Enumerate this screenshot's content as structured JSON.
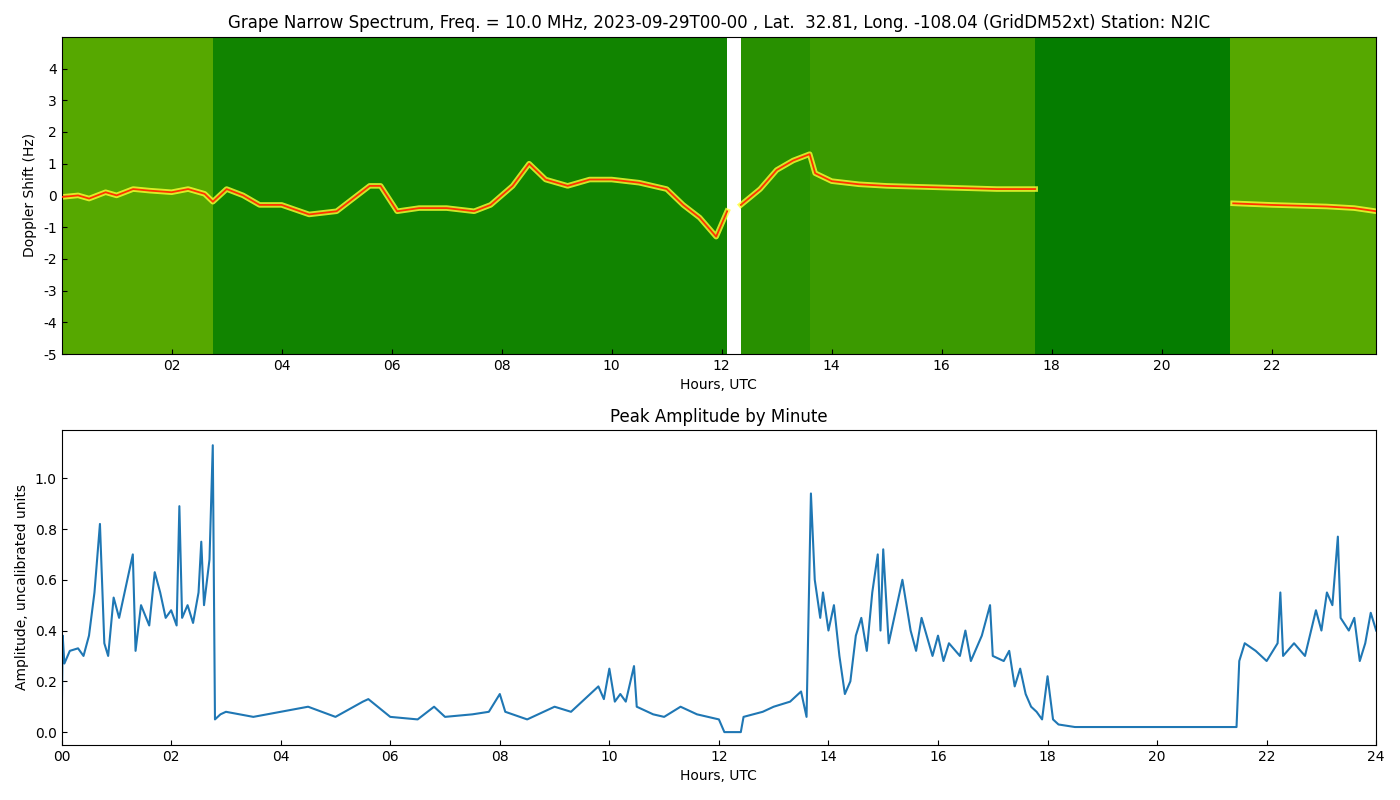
{
  "chart_data": [
    {
      "type": "spectrogram",
      "title": "Grape Narrow Spectrum, Freq. = 10.0 MHz, 2023-09-29T00-00 , Lat.  32.81, Long. -108.04 (GridDM52xt) Station: N2IC",
      "x_label": "Hours, UTC",
      "y_label": "Doppler Shift (Hz)",
      "xlim": [
        0,
        23.9
      ],
      "ylim": [
        -5,
        5
      ],
      "xticks": [
        {
          "value": 2,
          "label": "02"
        },
        {
          "value": 4,
          "label": "04"
        },
        {
          "value": 6,
          "label": "06"
        },
        {
          "value": 8,
          "label": "08"
        },
        {
          "value": 10,
          "label": "10"
        },
        {
          "value": 12,
          "label": "12"
        },
        {
          "value": 14,
          "label": "14"
        },
        {
          "value": 16,
          "label": "16"
        },
        {
          "value": 18,
          "label": "18"
        },
        {
          "value": 20,
          "label": "20"
        },
        {
          "value": 22,
          "label": "22"
        }
      ],
      "yticks": [
        -5,
        -4,
        -3,
        -2,
        -1,
        0,
        1,
        2,
        3,
        4
      ],
      "background": {
        "bins": [
          0,
          2.75,
          12.1,
          12.35,
          13.6,
          17.7,
          21.25,
          23.9
        ],
        "levels": [
          0.6,
          0.15,
          null,
          0.35,
          0.5,
          0.05,
          0.6
        ]
      },
      "x": [
        0,
        0.3,
        0.5,
        0.8,
        1.0,
        1.3,
        1.6,
        2.0,
        2.3,
        2.6,
        2.75,
        3.0,
        3.3,
        3.6,
        4.0,
        4.5,
        5.0,
        5.3,
        5.6,
        5.8,
        6.1,
        6.5,
        7.0,
        7.5,
        7.8,
        8.2,
        8.5,
        8.8,
        9.2,
        9.6,
        10.0,
        10.5,
        11.0,
        11.3,
        11.6,
        11.9,
        12.1,
        12.2,
        12.35,
        12.7,
        13.0,
        13.3,
        13.6,
        13.7,
        14.0,
        14.5,
        15.0,
        16.0,
        17.0,
        17.7,
        18.0,
        21.3,
        22.0,
        23.0,
        23.5,
        23.9
      ],
      "values": [
        -0.05,
        0.0,
        -0.1,
        0.1,
        0.0,
        0.2,
        0.15,
        0.1,
        0.2,
        0.05,
        -0.2,
        0.2,
        0.0,
        -0.3,
        -0.3,
        -0.6,
        -0.5,
        -0.1,
        0.3,
        0.3,
        -0.5,
        -0.4,
        -0.4,
        -0.5,
        -0.3,
        0.3,
        1.0,
        0.5,
        0.3,
        0.5,
        0.5,
        0.4,
        0.2,
        -0.3,
        -0.7,
        -1.3,
        -0.5,
        null,
        -0.3,
        0.2,
        0.8,
        1.1,
        1.3,
        0.7,
        0.45,
        0.35,
        0.3,
        0.25,
        0.2,
        0.2,
        null,
        -0.25,
        -0.3,
        -0.35,
        -0.4,
        -0.5
      ],
      "color": "#ff3300"
    },
    {
      "type": "line",
      "title": "Peak Amplitude by Minute",
      "x_label": "Hours, UTC",
      "y_label": "Amplitude, uncalibrated units",
      "xlim": [
        0,
        24
      ],
      "ylim": [
        -0.05,
        1.19
      ],
      "xticks": [
        {
          "value": 0,
          "label": "00"
        },
        {
          "value": 2,
          "label": "02"
        },
        {
          "value": 4,
          "label": "04"
        },
        {
          "value": 6,
          "label": "06"
        },
        {
          "value": 8,
          "label": "08"
        },
        {
          "value": 10,
          "label": "10"
        },
        {
          "value": 12,
          "label": "12"
        },
        {
          "value": 14,
          "label": "14"
        },
        {
          "value": 16,
          "label": "16"
        },
        {
          "value": 18,
          "label": "18"
        },
        {
          "value": 20,
          "label": "20"
        },
        {
          "value": 22,
          "label": "22"
        },
        {
          "value": 24,
          "label": "24"
        }
      ],
      "yticks": [
        {
          "value": 0,
          "label": "0.0"
        },
        {
          "value": 0.2,
          "label": "0.2"
        },
        {
          "value": 0.4,
          "label": "0.4"
        },
        {
          "value": 0.6,
          "label": "0.6"
        },
        {
          "value": 0.8,
          "label": "0.8"
        },
        {
          "value": 1.0,
          "label": "1.0"
        }
      ],
      "x": [
        0.0,
        0.02,
        0.05,
        0.15,
        0.3,
        0.4,
        0.5,
        0.6,
        0.7,
        0.78,
        0.85,
        0.95,
        1.05,
        1.2,
        1.3,
        1.35,
        1.45,
        1.6,
        1.7,
        1.8,
        1.9,
        2.0,
        2.1,
        2.15,
        2.2,
        2.3,
        2.4,
        2.5,
        2.55,
        2.6,
        2.7,
        2.76,
        2.8,
        2.9,
        3.0,
        3.5,
        4.0,
        4.5,
        5.0,
        5.5,
        5.6,
        6.0,
        6.5,
        6.8,
        7.0,
        7.5,
        7.8,
        8.0,
        8.1,
        8.5,
        8.8,
        9.0,
        9.3,
        9.5,
        9.8,
        9.9,
        10.0,
        10.1,
        10.2,
        10.3,
        10.45,
        10.5,
        10.8,
        11.0,
        11.3,
        11.6,
        12.0,
        12.1,
        12.4,
        12.45,
        12.8,
        13.0,
        13.3,
        13.5,
        13.6,
        13.68,
        13.75,
        13.85,
        13.9,
        14.0,
        14.1,
        14.2,
        14.3,
        14.4,
        14.5,
        14.6,
        14.7,
        14.8,
        14.9,
        14.95,
        15.0,
        15.1,
        15.2,
        15.35,
        15.5,
        15.6,
        15.7,
        15.9,
        16.0,
        16.1,
        16.2,
        16.4,
        16.5,
        16.6,
        16.8,
        16.95,
        17.0,
        17.2,
        17.3,
        17.4,
        17.5,
        17.6,
        17.7,
        17.8,
        17.9,
        18.0,
        18.1,
        18.2,
        18.5,
        19.0,
        19.5,
        20.0,
        20.5,
        21.0,
        21.45,
        21.5,
        21.6,
        21.8,
        22.0,
        22.2,
        22.25,
        22.3,
        22.5,
        22.7,
        22.9,
        23.0,
        23.1,
        23.2,
        23.3,
        23.35,
        23.5,
        23.6,
        23.7,
        23.8,
        23.9,
        24.0
      ],
      "values": [
        0.0,
        0.38,
        0.27,
        0.32,
        0.33,
        0.3,
        0.38,
        0.55,
        0.82,
        0.35,
        0.3,
        0.53,
        0.45,
        0.6,
        0.7,
        0.32,
        0.5,
        0.42,
        0.63,
        0.55,
        0.45,
        0.48,
        0.42,
        0.89,
        0.45,
        0.5,
        0.43,
        0.55,
        0.75,
        0.5,
        0.68,
        1.13,
        0.05,
        0.07,
        0.08,
        0.06,
        0.08,
        0.1,
        0.06,
        0.12,
        0.13,
        0.06,
        0.05,
        0.1,
        0.06,
        0.07,
        0.08,
        0.15,
        0.08,
        0.05,
        0.08,
        0.1,
        0.08,
        0.12,
        0.18,
        0.13,
        0.25,
        0.12,
        0.15,
        0.12,
        0.26,
        0.1,
        0.07,
        0.06,
        0.1,
        0.07,
        0.05,
        0.0,
        0.0,
        0.06,
        0.08,
        0.1,
        0.12,
        0.16,
        0.06,
        0.94,
        0.6,
        0.45,
        0.55,
        0.4,
        0.5,
        0.3,
        0.15,
        0.2,
        0.38,
        0.45,
        0.32,
        0.55,
        0.7,
        0.4,
        0.72,
        0.35,
        0.45,
        0.6,
        0.4,
        0.32,
        0.45,
        0.3,
        0.38,
        0.28,
        0.35,
        0.3,
        0.4,
        0.28,
        0.38,
        0.5,
        0.3,
        0.28,
        0.32,
        0.18,
        0.25,
        0.15,
        0.1,
        0.08,
        0.05,
        0.22,
        0.05,
        0.03,
        0.02,
        0.02,
        0.02,
        0.02,
        0.02,
        0.02,
        0.02,
        0.28,
        0.35,
        0.32,
        0.28,
        0.35,
        0.55,
        0.3,
        0.35,
        0.3,
        0.48,
        0.4,
        0.55,
        0.5,
        0.77,
        0.45,
        0.4,
        0.45,
        0.28,
        0.35,
        0.47,
        0.4
      ],
      "color": "#1f77b4"
    }
  ]
}
